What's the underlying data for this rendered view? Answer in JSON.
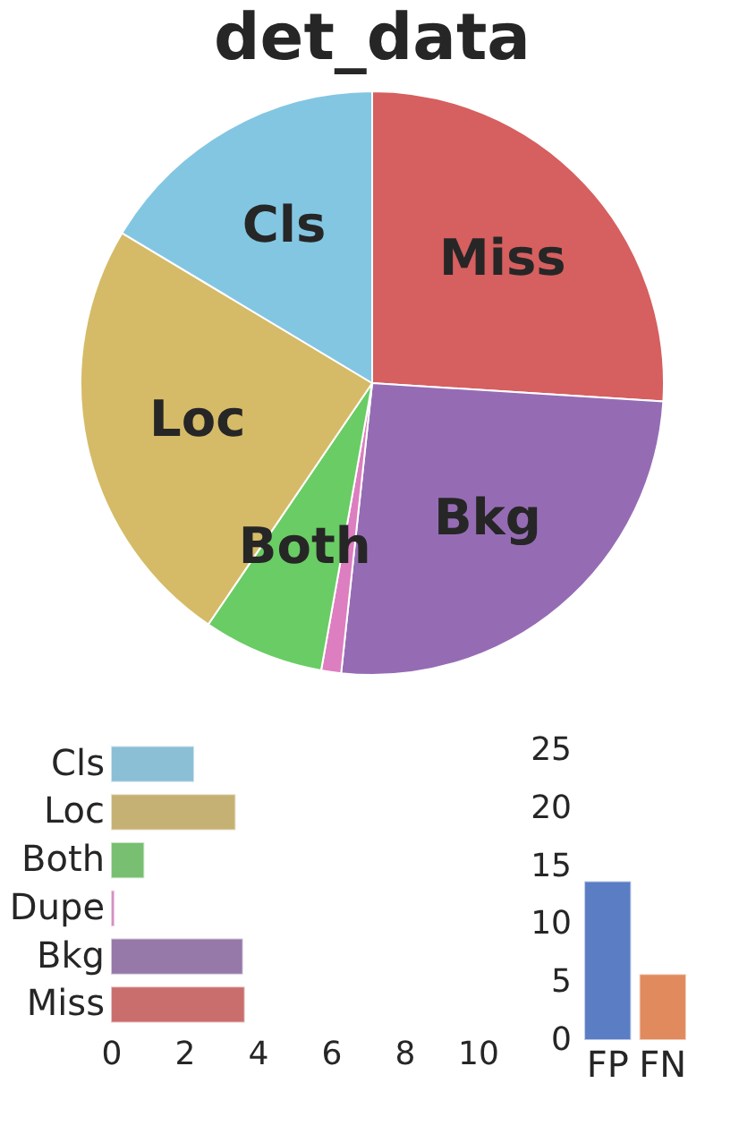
{
  "chart_data": [
    {
      "type": "pie",
      "title": "det_data",
      "categories": [
        "Miss",
        "Bkg",
        null,
        "Both",
        "Loc",
        "Cls"
      ],
      "values": [
        26.0,
        25.7,
        1.1,
        6.7,
        24.1,
        16.4
      ],
      "colors": [
        "#d65f5f",
        "#956cb4",
        "#dc7ec0",
        "#6acc64",
        "#d5bb67",
        "#82c6e2"
      ]
    },
    {
      "type": "bar",
      "orientation": "horizontal",
      "categories": [
        "Cls",
        "Loc",
        "Both",
        "Dupe",
        "Bkg",
        "Miss"
      ],
      "values": [
        2.27,
        3.4,
        0.91,
        0.1,
        3.6,
        3.65
      ],
      "colors": [
        "#8bbfd6",
        "#c6b174",
        "#78bf72",
        "#d58fc3",
        "#9678a9",
        "#c96e6d"
      ],
      "xlim": [
        0,
        10
      ],
      "xticks": [
        0,
        2,
        4,
        6,
        8,
        10
      ],
      "grid": false
    },
    {
      "type": "bar",
      "categories": [
        "FP",
        "FN"
      ],
      "values": [
        13.7,
        5.7
      ],
      "colors": [
        "#5a7dc4",
        "#e08a5e"
      ],
      "ylim": [
        0,
        25
      ],
      "yticks": [
        0,
        5,
        10,
        15,
        20,
        25
      ],
      "grid": false
    }
  ]
}
